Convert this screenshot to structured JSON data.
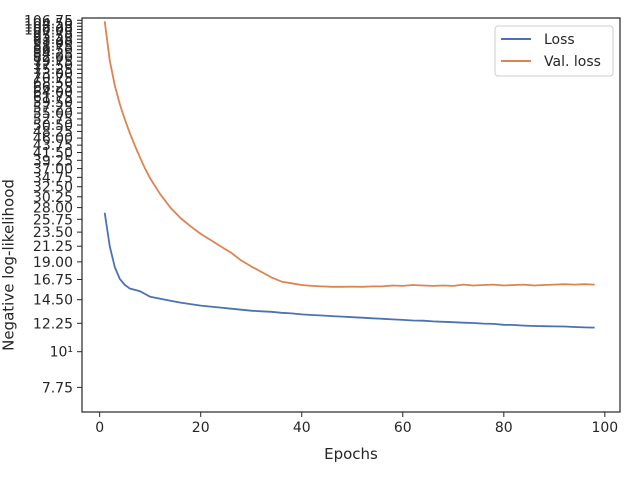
{
  "chart_data": {
    "type": "line",
    "xlabel": "Epochs",
    "ylabel": "Negative log-likelihood",
    "xlim": [
      -3.5,
      103
    ],
    "ylim": [
      6.5,
      108.5
    ],
    "yscale": "log",
    "x_ticks": [
      0,
      20,
      40,
      60,
      80,
      100
    ],
    "y_ticks": [
      {
        "value": 7.75,
        "label": "7.75"
      },
      {
        "value": 10,
        "label": "10¹"
      },
      {
        "value": 12.25,
        "label": "12.25"
      },
      {
        "value": 14.5,
        "label": "14.50"
      },
      {
        "value": 16.75,
        "label": "16.75"
      },
      {
        "value": 19.0,
        "label": "19.00"
      },
      {
        "value": 21.25,
        "label": "21.25"
      },
      {
        "value": 23.5,
        "label": "23.50"
      },
      {
        "value": 25.75,
        "label": "25.75"
      },
      {
        "value": 28.0,
        "label": "28.00"
      },
      {
        "value": 30.25,
        "label": "30.25"
      },
      {
        "value": 32.5,
        "label": "32.50"
      },
      {
        "value": 34.75,
        "label": "34.75"
      },
      {
        "value": 37.0,
        "label": "37.00"
      },
      {
        "value": 39.25,
        "label": "39.25"
      },
      {
        "value": 41.5,
        "label": "41.50"
      },
      {
        "value": 43.75,
        "label": "43.75"
      },
      {
        "value": 46.0,
        "label": "46.00"
      },
      {
        "value": 48.25,
        "label": "48.25"
      },
      {
        "value": 50.5,
        "label": "50.50"
      },
      {
        "value": 52.75,
        "label": "52.75"
      },
      {
        "value": 55.0,
        "label": "55.00"
      },
      {
        "value": 57.25,
        "label": "57.25"
      },
      {
        "value": 59.5,
        "label": "59.50"
      },
      {
        "value": 61.75,
        "label": "61.75"
      },
      {
        "value": 64.0,
        "label": "64.00"
      },
      {
        "value": 66.25,
        "label": "66.25"
      },
      {
        "value": 68.5,
        "label": "68.50"
      },
      {
        "value": 70.75,
        "label": "70.75"
      },
      {
        "value": 73.0,
        "label": "73.00"
      },
      {
        "value": 75.25,
        "label": "75.25"
      },
      {
        "value": 77.5,
        "label": "77.50"
      },
      {
        "value": 79.75,
        "label": "79.75"
      },
      {
        "value": 82.0,
        "label": "82.00"
      },
      {
        "value": 84.25,
        "label": "84.25"
      },
      {
        "value": 86.5,
        "label": "86.50"
      },
      {
        "value": 88.75,
        "label": "88.75"
      },
      {
        "value": 91.0,
        "label": "91.00"
      },
      {
        "value": 93.25,
        "label": "93.25"
      },
      {
        "value": 95.5,
        "label": "95.50"
      },
      {
        "value": 97.75,
        "label": "97.75"
      },
      {
        "value": 100.0,
        "label": "100.00"
      },
      {
        "value": 102.25,
        "label": "102.25"
      },
      {
        "value": 104.5,
        "label": "104.50"
      },
      {
        "value": 106.75,
        "label": "106.75"
      }
    ],
    "legend_placement": "top-right",
    "grid": false,
    "series": [
      {
        "name": "Loss",
        "color": "#4c72b0",
        "points": [
          [
            1,
            27.0
          ],
          [
            2,
            21.2
          ],
          [
            3,
            18.3
          ],
          [
            4,
            16.8
          ],
          [
            5,
            16.1
          ],
          [
            6,
            15.7
          ],
          [
            7,
            15.55
          ],
          [
            8,
            15.4
          ],
          [
            9,
            15.1
          ],
          [
            10,
            14.8
          ],
          [
            12,
            14.6
          ],
          [
            14,
            14.4
          ],
          [
            16,
            14.2
          ],
          [
            18,
            14.05
          ],
          [
            20,
            13.9
          ],
          [
            22,
            13.8
          ],
          [
            24,
            13.7
          ],
          [
            26,
            13.6
          ],
          [
            28,
            13.5
          ],
          [
            30,
            13.4
          ],
          [
            32,
            13.35
          ],
          [
            34,
            13.3
          ],
          [
            36,
            13.2
          ],
          [
            38,
            13.15
          ],
          [
            40,
            13.05
          ],
          [
            42,
            13.0
          ],
          [
            44,
            12.95
          ],
          [
            46,
            12.9
          ],
          [
            48,
            12.85
          ],
          [
            50,
            12.8
          ],
          [
            52,
            12.75
          ],
          [
            54,
            12.7
          ],
          [
            56,
            12.65
          ],
          [
            58,
            12.6
          ],
          [
            60,
            12.55
          ],
          [
            62,
            12.5
          ],
          [
            64,
            12.48
          ],
          [
            66,
            12.42
          ],
          [
            68,
            12.38
          ],
          [
            70,
            12.35
          ],
          [
            72,
            12.3
          ],
          [
            74,
            12.28
          ],
          [
            76,
            12.22
          ],
          [
            78,
            12.2
          ],
          [
            80,
            12.12
          ],
          [
            82,
            12.1
          ],
          [
            84,
            12.05
          ],
          [
            86,
            12.02
          ],
          [
            88,
            12.0
          ],
          [
            90,
            11.98
          ],
          [
            92,
            11.97
          ],
          [
            94,
            11.93
          ],
          [
            96,
            11.9
          ],
          [
            98,
            11.88
          ]
        ]
      },
      {
        "name": "Val. loss",
        "color": "#dd8452",
        "points": [
          [
            1,
            106.0
          ],
          [
            2,
            80.0
          ],
          [
            3,
            67.0
          ],
          [
            4,
            58.5
          ],
          [
            5,
            52.5
          ],
          [
            6,
            47.5
          ],
          [
            7,
            43.5
          ],
          [
            8,
            40.0
          ],
          [
            9,
            37.0
          ],
          [
            10,
            34.5
          ],
          [
            12,
            30.8
          ],
          [
            14,
            28.0
          ],
          [
            16,
            26.0
          ],
          [
            18,
            24.5
          ],
          [
            20,
            23.2
          ],
          [
            22,
            22.2
          ],
          [
            24,
            21.2
          ],
          [
            26,
            20.3
          ],
          [
            28,
            19.2
          ],
          [
            30,
            18.4
          ],
          [
            32,
            17.7
          ],
          [
            34,
            17.0
          ],
          [
            36,
            16.5
          ],
          [
            38,
            16.3
          ],
          [
            40,
            16.1
          ],
          [
            42,
            16.0
          ],
          [
            44,
            15.95
          ],
          [
            46,
            15.9
          ],
          [
            48,
            15.9
          ],
          [
            50,
            15.92
          ],
          [
            52,
            15.9
          ],
          [
            54,
            15.95
          ],
          [
            56,
            15.95
          ],
          [
            58,
            16.05
          ],
          [
            60,
            16.0
          ],
          [
            62,
            16.1
          ],
          [
            64,
            16.05
          ],
          [
            66,
            16.0
          ],
          [
            68,
            16.05
          ],
          [
            70,
            16.0
          ],
          [
            72,
            16.15
          ],
          [
            74,
            16.05
          ],
          [
            76,
            16.1
          ],
          [
            78,
            16.15
          ],
          [
            80,
            16.05
          ],
          [
            82,
            16.1
          ],
          [
            84,
            16.15
          ],
          [
            86,
            16.05
          ],
          [
            88,
            16.1
          ],
          [
            90,
            16.15
          ],
          [
            92,
            16.2
          ],
          [
            94,
            16.15
          ],
          [
            96,
            16.2
          ],
          [
            98,
            16.15
          ]
        ]
      }
    ]
  }
}
